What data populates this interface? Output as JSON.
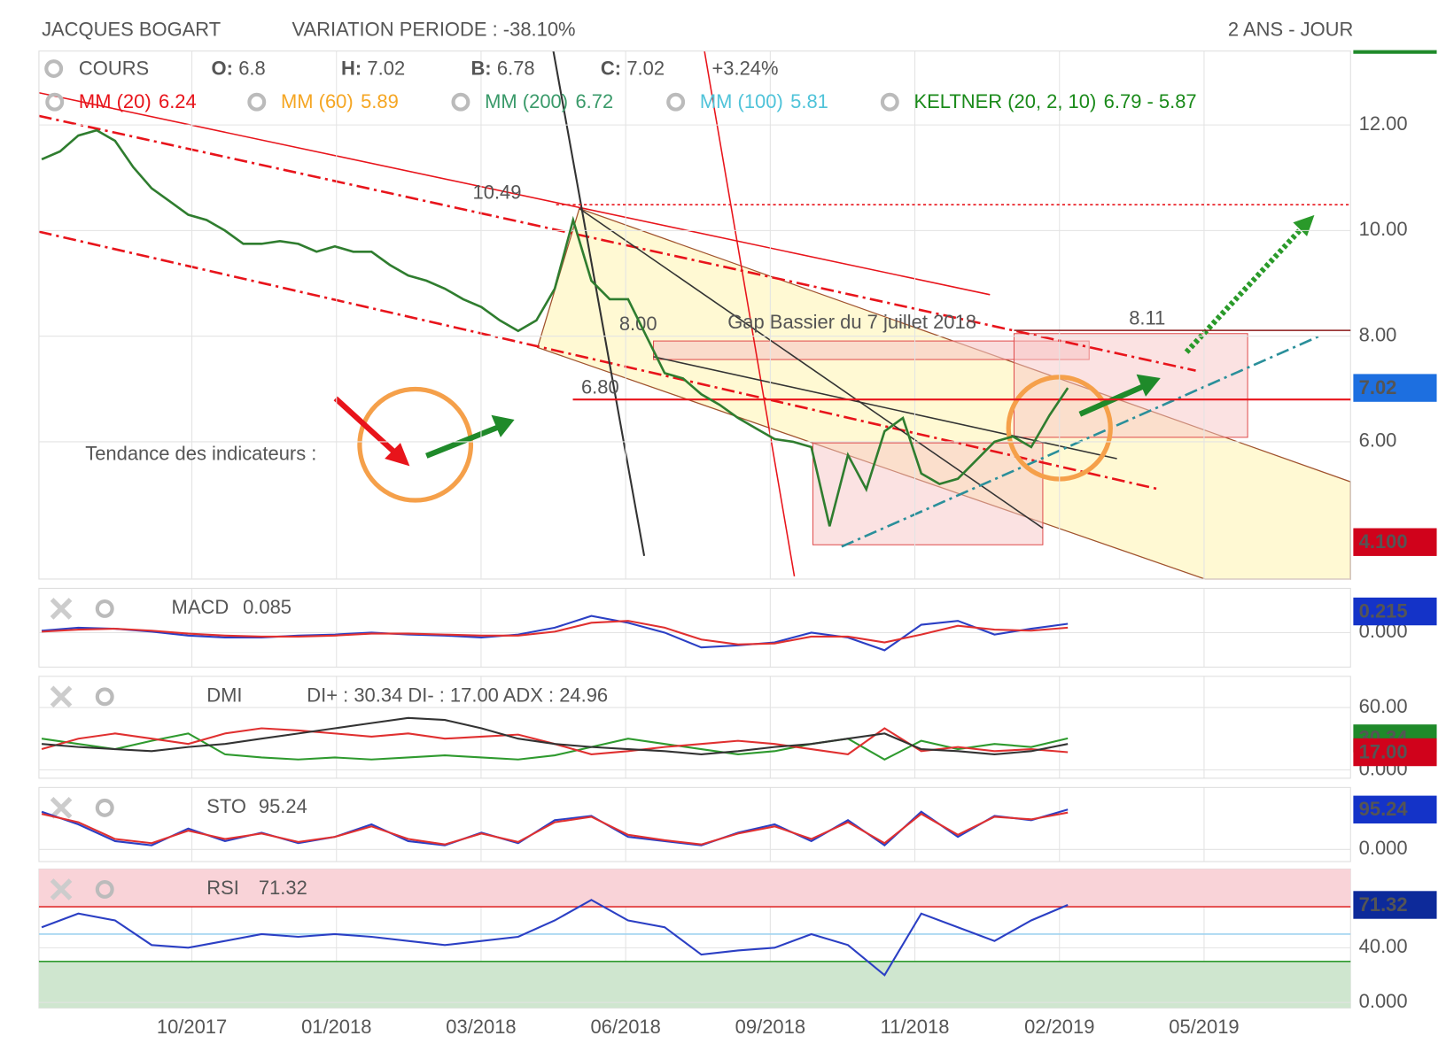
{
  "header": {
    "title": "JACQUES BOGART",
    "variation": "VARIATION PERIODE : -38.10%",
    "period": "2 ANS - JOUR"
  },
  "chart_data": [
    {
      "type": "line",
      "name": "COURS",
      "quote": [
        {
          "label": "O:",
          "value": 6.8
        },
        {
          "label": "H:",
          "value": 7.02
        },
        {
          "label": "B:",
          "value": 6.78
        },
        {
          "label": "C:",
          "value": 7.02
        }
      ],
      "change": "+3.24%",
      "indicators": [
        {
          "name": "MM (20)",
          "value": 6.24,
          "color": "#e8141b"
        },
        {
          "name": "MM (60)",
          "value": 5.89,
          "color": "#f5a623"
        },
        {
          "name": "MM (200)",
          "value": 6.72,
          "color": "#3a9a6a"
        },
        {
          "name": "MM (100)",
          "value": 5.81,
          "color": "#4fc3d9"
        },
        {
          "name": "KELTNER (20, 2, 10)",
          "value": "6.79 - 5.87",
          "color": "#1a8a1a"
        }
      ],
      "series": [
        {
          "name": "COURS",
          "color": "#2f7d2f",
          "values": [
            11.35,
            11.5,
            11.8,
            11.9,
            11.7,
            11.2,
            10.8,
            10.55,
            10.3,
            10.2,
            10.0,
            9.75,
            9.75,
            9.8,
            9.75,
            9.6,
            9.7,
            9.6,
            9.6,
            9.35,
            9.15,
            9.05,
            8.9,
            8.7,
            8.55,
            8.3,
            8.1,
            8.3,
            8.9,
            10.2,
            9.05,
            8.7,
            8.7,
            8.0,
            7.3,
            7.2,
            6.9,
            6.7,
            6.45,
            6.25,
            6.05,
            6.0,
            5.9,
            4.4,
            5.75,
            5.1,
            6.2,
            6.45,
            5.4,
            5.2,
            5.3,
            5.65,
            6.0,
            6.1,
            5.9,
            6.5,
            7.02
          ]
        }
      ],
      "ylim": [
        3.4,
        13.4
      ],
      "yticks": [
        {
          "value": 12,
          "label": "12.00"
        },
        {
          "value": 10,
          "label": "10.00"
        },
        {
          "value": 8,
          "label": "8.00"
        },
        {
          "value": 6,
          "label": "6.00"
        }
      ],
      "levels": [
        10.49,
        8.11,
        {
          "value": 6.8,
          "label": "6.80"
        },
        {
          "value": 8,
          "label": "8.00"
        }
      ],
      "annotations": [
        "Gap Bassier du 7 juillet 2018",
        "Tendance des indicateurs :"
      ],
      "badges": [
        {
          "value": 7.02,
          "color": "#1d6fe0"
        },
        {
          "value": 4.1,
          "label": "4.100",
          "color": "#d0021b"
        }
      ],
      "xticks": [
        "10/2017",
        "01/2018",
        "03/2018",
        "06/2018",
        "09/2018",
        "11/2018",
        "02/2019",
        "05/2019"
      ]
    },
    {
      "type": "line",
      "name": "MACD",
      "value": 0.085,
      "ylim": [
        -0.35,
        0.45
      ],
      "yticks": [
        {
          "value": 0,
          "label": "0.000"
        }
      ],
      "series": [
        {
          "name": "MACD",
          "color": "#2b3fc4",
          "values": [
            0.02,
            0.05,
            0.04,
            0.01,
            -0.03,
            -0.05,
            -0.05,
            -0.03,
            -0.02,
            0,
            -0.02,
            -0.03,
            -0.05,
            -0.02,
            0.05,
            0.17,
            0.1,
            0.0,
            -0.15,
            -0.13,
            -0.1,
            0.0,
            -0.05,
            -0.18,
            0.08,
            0.12,
            -0.02,
            0.04,
            0.09
          ]
        },
        {
          "name": "Signal",
          "color": "#e03030",
          "values": [
            0.01,
            0.03,
            0.04,
            0.02,
            -0.01,
            -0.03,
            -0.04,
            -0.04,
            -0.03,
            -0.01,
            -0.01,
            -0.02,
            -0.03,
            -0.03,
            0.01,
            0.1,
            0.12,
            0.05,
            -0.07,
            -0.12,
            -0.11,
            -0.04,
            -0.04,
            -0.1,
            -0.02,
            0.07,
            0.03,
            0.02,
            0.05
          ]
        }
      ],
      "badges": [
        {
          "value": 0.215,
          "color": "#1433c8"
        }
      ]
    },
    {
      "type": "line",
      "name": "DMI",
      "value": "DI+ : 30.34 DI- : 17.00 ADX : 24.96",
      "ylim": [
        -8,
        90
      ],
      "yticks": [
        {
          "value": 60,
          "label": "60.00"
        },
        {
          "value": 0,
          "label": "0.000"
        }
      ],
      "series": [
        {
          "name": "DI+",
          "color": "#2e9a2e",
          "values": [
            30,
            25,
            20,
            28,
            35,
            15,
            12,
            10,
            12,
            10,
            12,
            14,
            12,
            10,
            14,
            22,
            30,
            25,
            20,
            15,
            18,
            25,
            30,
            10,
            28,
            20,
            25,
            22,
            30.34
          ]
        },
        {
          "name": "DI-",
          "color": "#e03030",
          "values": [
            20,
            30,
            35,
            30,
            25,
            35,
            40,
            38,
            35,
            32,
            35,
            30,
            32,
            34,
            25,
            15,
            18,
            22,
            25,
            28,
            25,
            20,
            15,
            40,
            18,
            22,
            18,
            20,
            17
          ]
        },
        {
          "name": "ADX",
          "color": "#333333",
          "values": [
            25,
            22,
            20,
            18,
            22,
            25,
            30,
            35,
            40,
            45,
            50,
            48,
            40,
            30,
            25,
            22,
            20,
            18,
            15,
            18,
            22,
            25,
            30,
            35,
            20,
            18,
            15,
            18,
            24.96
          ]
        }
      ],
      "badges": [
        {
          "value": 30.34,
          "color": "#1f8a2a"
        },
        {
          "value": 17,
          "label": "17.00",
          "color": "#d0021b"
        }
      ]
    },
    {
      "type": "line",
      "name": "STO",
      "value": 95.24,
      "ylim": [
        -29,
        148
      ],
      "yticks": [
        {
          "value": 0,
          "label": "0.000"
        }
      ],
      "series": [
        {
          "name": "%K",
          "color": "#2b3fc4",
          "values": [
            90,
            60,
            20,
            10,
            50,
            20,
            40,
            15,
            30,
            60,
            20,
            10,
            40,
            15,
            70,
            80,
            30,
            20,
            10,
            40,
            60,
            20,
            70,
            10,
            90,
            30,
            80,
            70,
            95.24
          ]
        },
        {
          "name": "%D",
          "color": "#e03030",
          "values": [
            85,
            65,
            25,
            15,
            45,
            25,
            38,
            18,
            30,
            55,
            25,
            12,
            38,
            18,
            65,
            78,
            35,
            22,
            12,
            38,
            55,
            25,
            65,
            15,
            85,
            35,
            78,
            72,
            88
          ]
        }
      ],
      "badges": [
        {
          "value": 95.24,
          "color": "#1433c8"
        }
      ]
    },
    {
      "type": "line",
      "name": "RSI",
      "value": 71.32,
      "ylim": [
        -4,
        97.6
      ],
      "yticks": [
        {
          "value": 40,
          "label": "40.00"
        },
        {
          "value": 0,
          "label": "0.000"
        }
      ],
      "levels": [
        70,
        50,
        30
      ],
      "series": [
        {
          "name": "RSI",
          "color": "#2b3fc4",
          "values": [
            55,
            65,
            60,
            42,
            40,
            45,
            50,
            48,
            50,
            48,
            45,
            42,
            45,
            48,
            60,
            75,
            60,
            55,
            35,
            38,
            40,
            50,
            42,
            20,
            65,
            55,
            45,
            60,
            71.32
          ]
        }
      ],
      "badges": [
        {
          "value": 71.32,
          "color": "#0d2a9a"
        }
      ]
    }
  ]
}
